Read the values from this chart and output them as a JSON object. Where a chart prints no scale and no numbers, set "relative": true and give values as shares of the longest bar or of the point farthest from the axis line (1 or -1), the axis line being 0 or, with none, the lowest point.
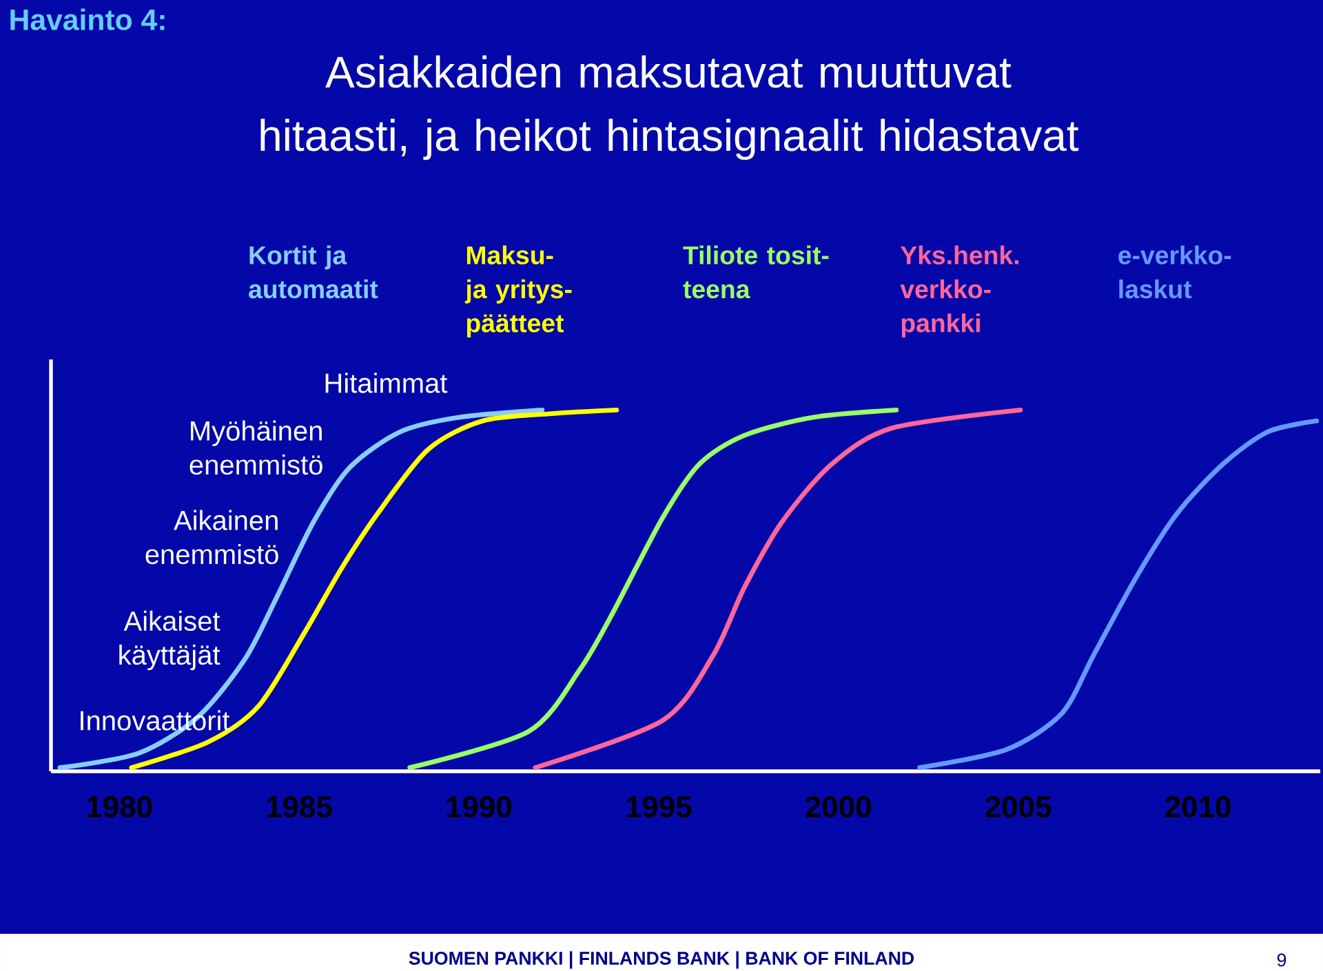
{
  "chart_data": {
    "type": "line",
    "relative": true,
    "title": "Havainto 4:",
    "subtitle": "Asiakkaiden maksutavat muuttuvat hitaasti, ja heikot hintasignaalit hidastavat",
    "xlim": [
      1978.1,
      2013.4
    ],
    "xticks": [
      1980,
      1985,
      1990,
      1995,
      2000,
      2005,
      2010
    ],
    "grid": false,
    "marker": "none",
    "line_style": "solid",
    "series": [
      {
        "name": "Kortit ja automaatit",
        "color": "#87cefa",
        "x": [
          1978.35,
          1980.54,
          1982.18,
          1983.49,
          1984.37,
          1985.4,
          1986.4,
          1987.82,
          1989.46,
          1991.76
        ],
        "values": [
          0.01,
          0.05,
          0.15,
          0.31,
          0.48,
          0.69,
          0.84,
          0.94,
          0.98,
          1.0
        ]
      },
      {
        "name": "Maksu- ja yritys-päätteet",
        "color": "#ffff00",
        "x": [
          1980.34,
          1982.45,
          1983.87,
          1985.13,
          1986.17,
          1987.16,
          1988.58,
          1990.11,
          1992.03,
          1993.83
        ],
        "values": [
          0.01,
          0.08,
          0.18,
          0.38,
          0.56,
          0.71,
          0.89,
          0.97,
          0.99,
          1.0
        ]
      },
      {
        "name": "Tiliote tosit-teena",
        "color": "#99ff66",
        "x": [
          1988.08,
          1991.38,
          1992.8,
          1993.68,
          1995.1,
          1996.13,
          1997.39,
          1999.31,
          2001.61
        ],
        "values": [
          0.01,
          0.11,
          0.28,
          0.43,
          0.7,
          0.85,
          0.93,
          0.98,
          1.0
        ]
      },
      {
        "name": "Yks.henk. verkko-pankki",
        "color": "#ff6699",
        "x": [
          1991.57,
          1995.1,
          1996.51,
          1997.39,
          1998.43,
          1999.81,
          2001.49,
          2005.06
        ],
        "values": [
          0.01,
          0.14,
          0.32,
          0.51,
          0.69,
          0.85,
          0.95,
          1.0
        ]
      },
      {
        "name": "e-verkko-laskut",
        "color": "#6699ff",
        "x": [
          2002.26,
          2004.67,
          2006.21,
          2007.09,
          2008.24,
          2009.39,
          2010.69,
          2011.95,
          2013.3
        ],
        "values": [
          0.01,
          0.06,
          0.16,
          0.32,
          0.53,
          0.71,
          0.85,
          0.94,
          0.97
        ]
      }
    ],
    "annotations": [
      "Innovaattorit",
      "Aikaiset käyttäjät",
      "Aikainen enemmistö",
      "Myöhäinen enemmistö",
      "Hitaimmat",
      "SUOMEN PANKKI | FINLANDS BANK | BANK OF FINLAND",
      "9"
    ]
  }
}
